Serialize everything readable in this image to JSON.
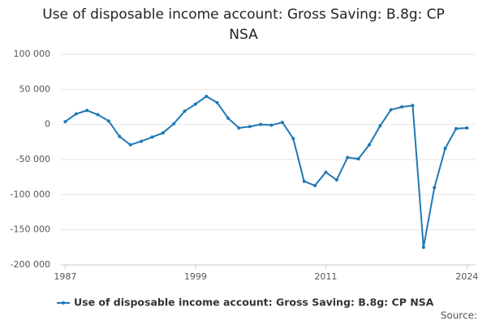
{
  "chart_data": {
    "type": "line",
    "title": "Use of disposable income account: Gross Saving: B.8g: CP NSA",
    "source": "Source:",
    "x": [
      1987,
      1988,
      1989,
      1990,
      1991,
      1992,
      1993,
      1994,
      1995,
      1996,
      1997,
      1998,
      1999,
      2000,
      2001,
      2002,
      2003,
      2004,
      2005,
      2006,
      2007,
      2008,
      2009,
      2010,
      2011,
      2012,
      2013,
      2014,
      2015,
      2016,
      2017,
      2018,
      2019,
      2020,
      2021,
      2022,
      2023,
      2024
    ],
    "series": [
      {
        "name": "Use of disposable income account: Gross Saving: B.8g: CP NSA",
        "color": "#1f78b4",
        "values": [
          4000,
          15000,
          20000,
          14000,
          5000,
          -17000,
          -29000,
          -24000,
          -18000,
          -12000,
          1000,
          19000,
          29000,
          40000,
          31000,
          9000,
          -5000,
          -3000,
          0,
          -1000,
          3000,
          -20000,
          -81000,
          -87000,
          -68000,
          -79000,
          -47000,
          -49000,
          -29000,
          -2000,
          21000,
          25000,
          27000,
          -175000,
          -90000,
          -34000,
          -6000,
          -5000
        ]
      }
    ],
    "xlim": [
      1986.6,
      2024.8
    ],
    "xticks": [
      1987,
      1999,
      2011,
      2024
    ],
    "ylim": [
      -200000,
      100000
    ],
    "yticks": [
      {
        "value": -200000,
        "label": "-200 000"
      },
      {
        "value": -150000,
        "label": "-150 000"
      },
      {
        "value": -100000,
        "label": "-100 000"
      },
      {
        "value": -50000,
        "label": "-50 000"
      },
      0,
      {
        "value": 50000,
        "label": "50 000"
      },
      {
        "value": 100000,
        "label": "100 000"
      }
    ],
    "grid": true
  }
}
